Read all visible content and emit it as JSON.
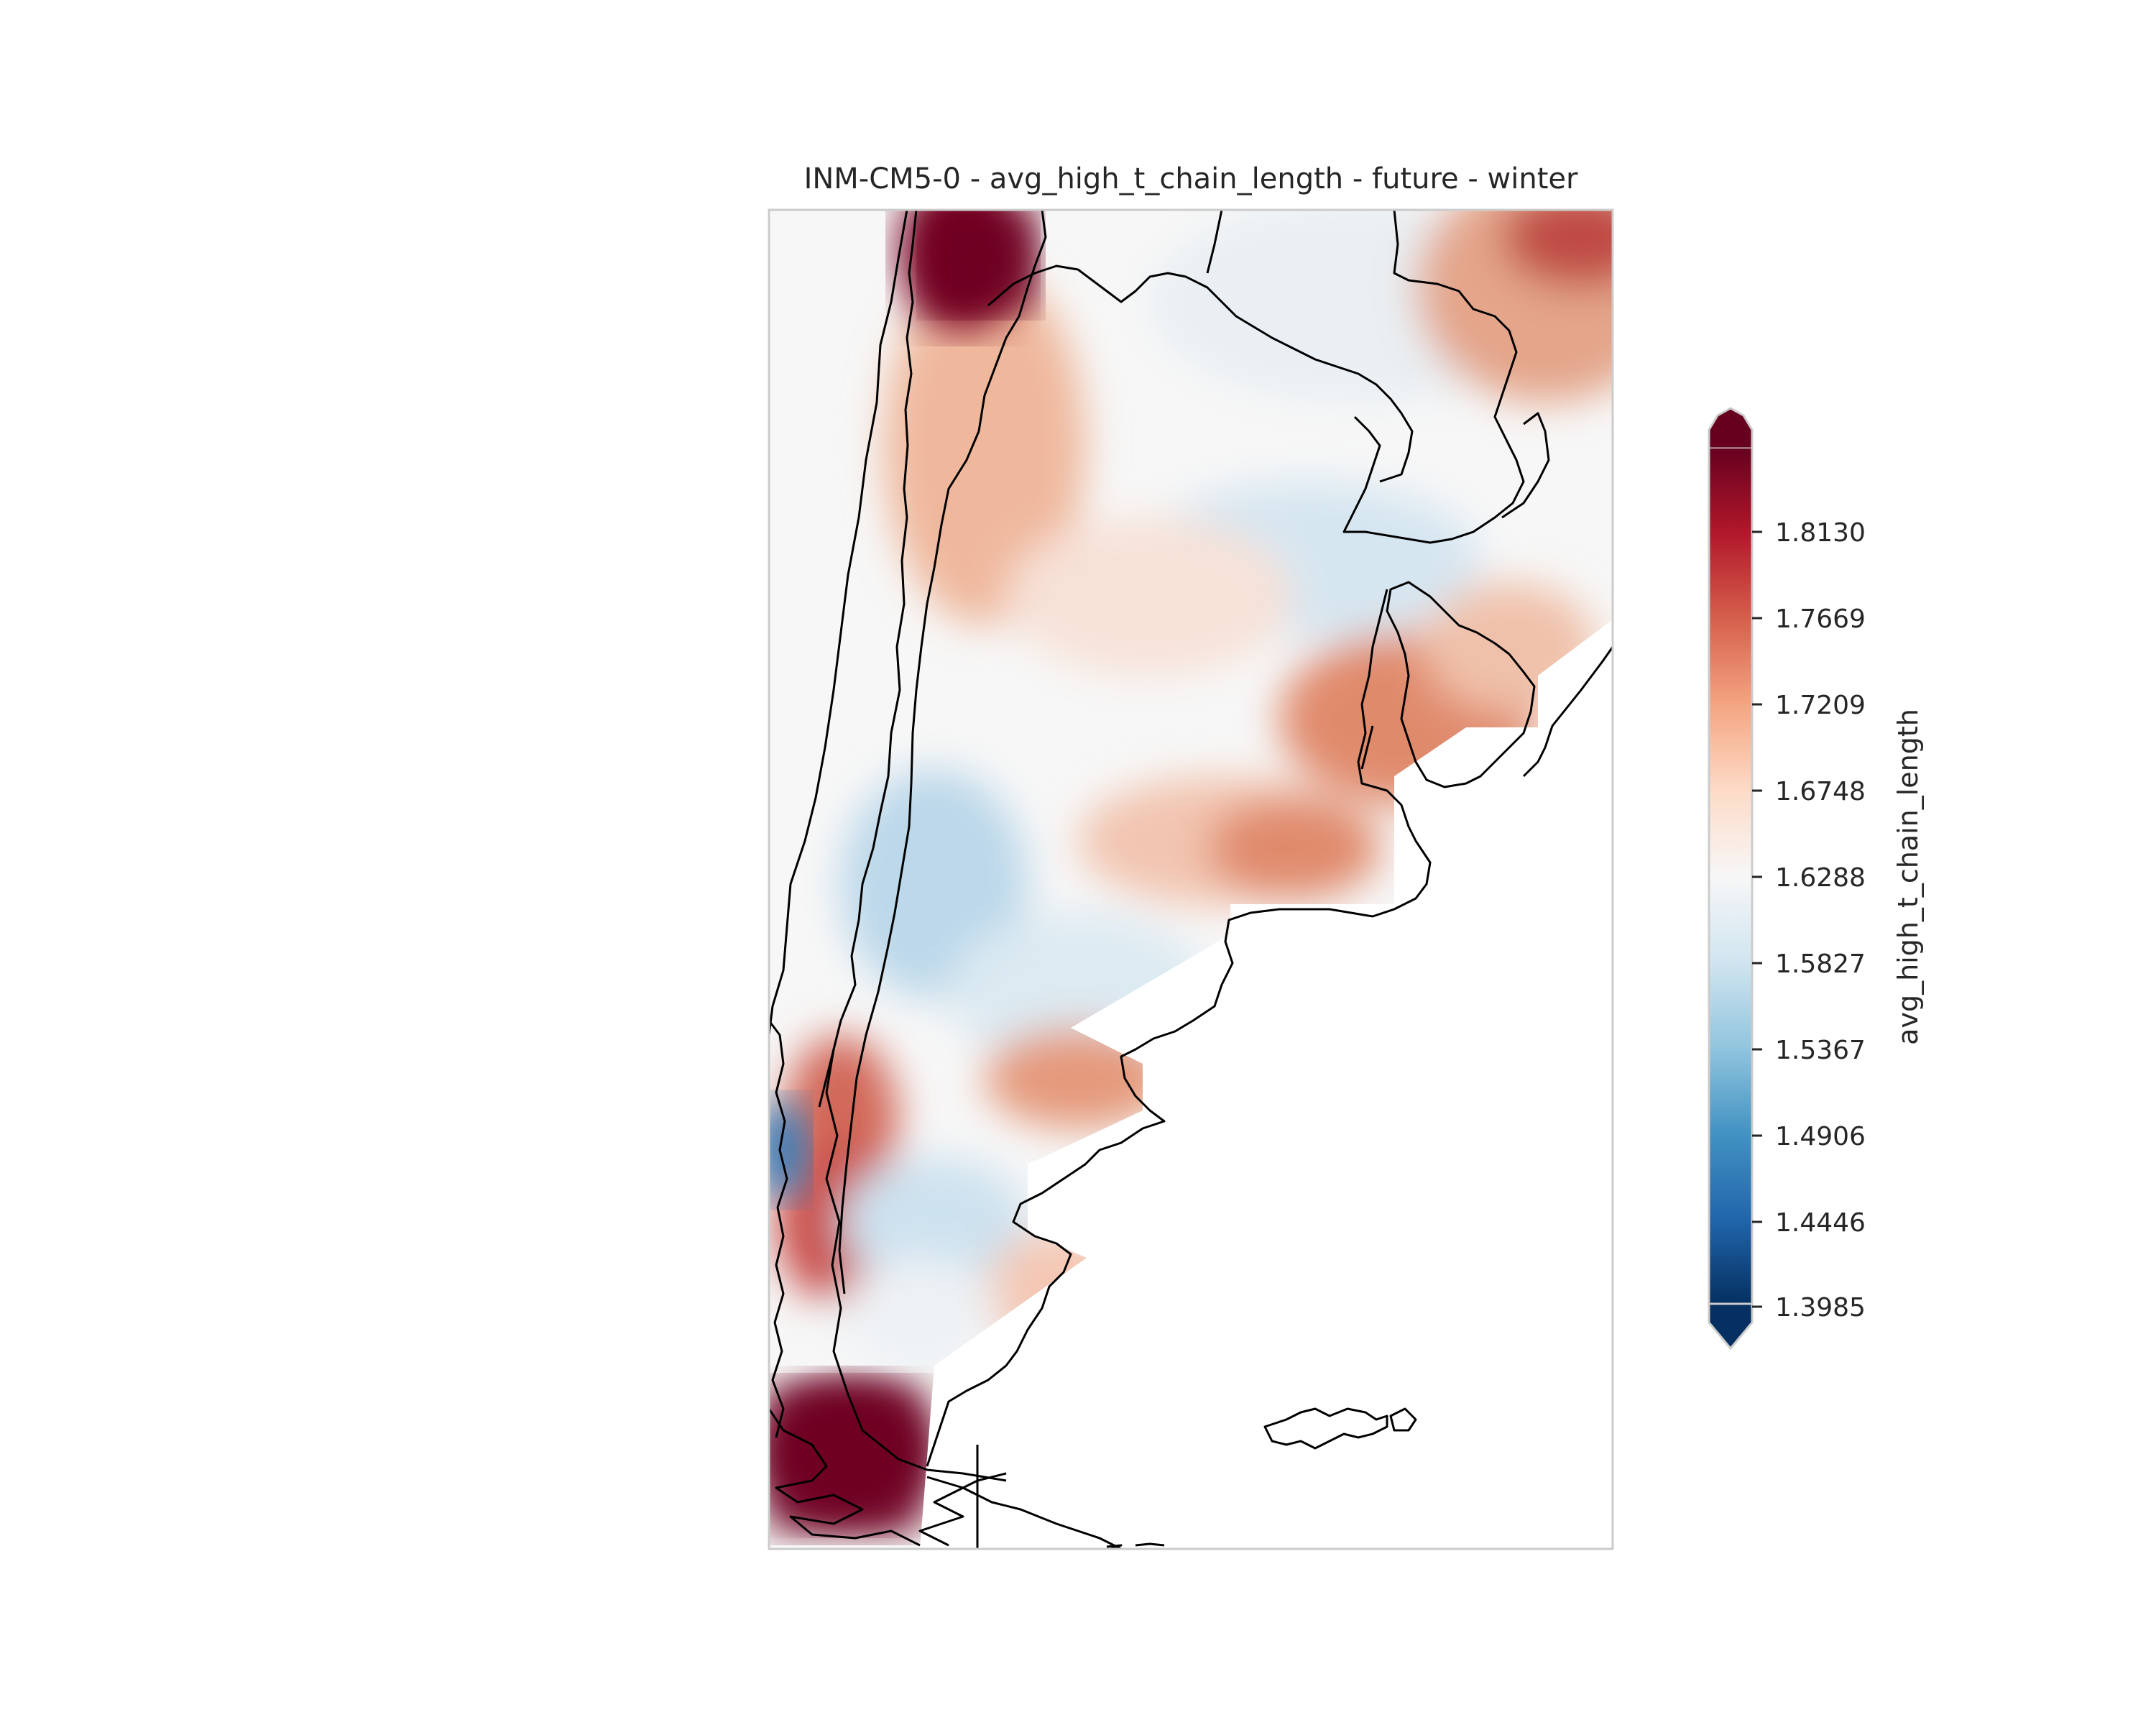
{
  "title": "INM-CM5-0 - avg_high_t_chain_length - future - winter",
  "colorbar": {
    "label": "avg_high_t_chain_length",
    "ticks": [
      "1.8130",
      "1.7669",
      "1.7209",
      "1.6748",
      "1.6288",
      "1.5827",
      "1.5367",
      "1.4906",
      "1.4446",
      "1.3985"
    ],
    "colormap": "RdBu_r",
    "min_color": "#053061",
    "max_color": "#67001f",
    "extend": "both"
  },
  "map": {
    "region": "Argentina and surroundings",
    "variable": "avg_high_t_chain_length",
    "period": "future",
    "season": "winter",
    "model": "INM-CM5-0"
  }
}
